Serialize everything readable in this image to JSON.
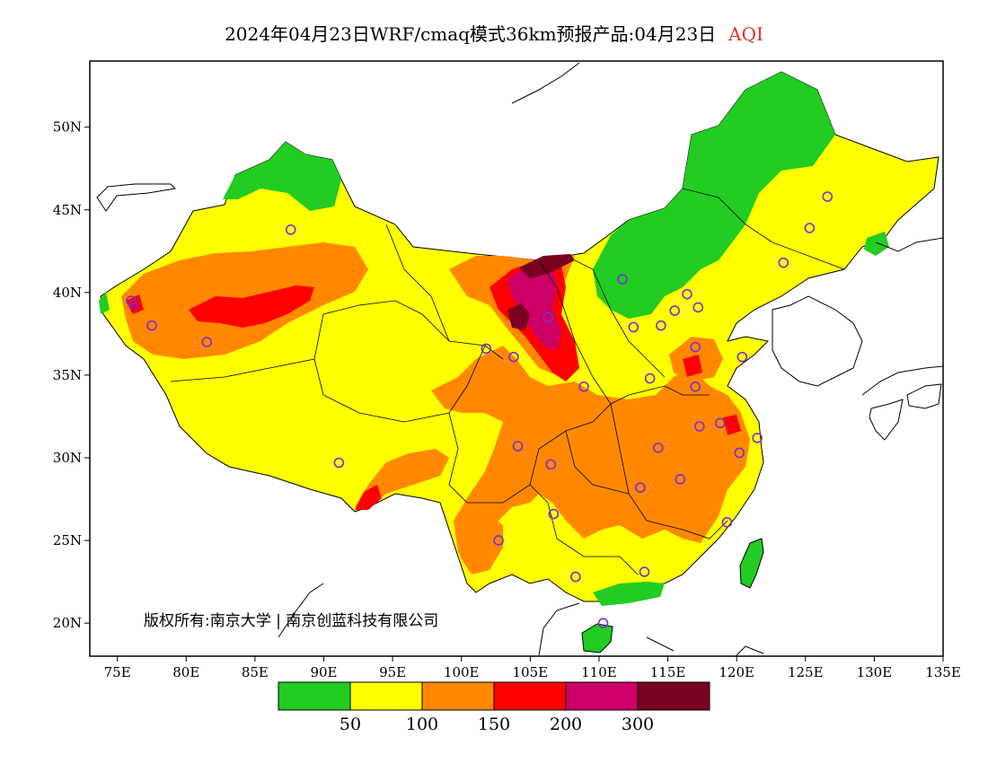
{
  "title": {
    "main": "2024年04月23日WRF/cmaq模式36km预报产品:04月23日",
    "variable": "AQI"
  },
  "map": {
    "lon_range": [
      73,
      135
    ],
    "lat_range": [
      18,
      54
    ],
    "lon_ticks": [
      "75E",
      "80E",
      "85E",
      "90E",
      "95E",
      "100E",
      "105E",
      "110E",
      "115E",
      "120E",
      "125E",
      "130E",
      "135E"
    ],
    "lat_ticks": [
      "20N",
      "25N",
      "30N",
      "35N",
      "40N",
      "45N",
      "50N"
    ],
    "copyright": "版权所有:南京大学 | 南京创蓝科技有限公司",
    "station_marker_color": "#7b2fd0"
  },
  "legend": {
    "colors": [
      "#22cc22",
      "#ffff00",
      "#ff8800",
      "#ff0000",
      "#cc0066",
      "#7a0022"
    ],
    "labels": [
      "50",
      "100",
      "150",
      "200",
      "300"
    ]
  }
}
